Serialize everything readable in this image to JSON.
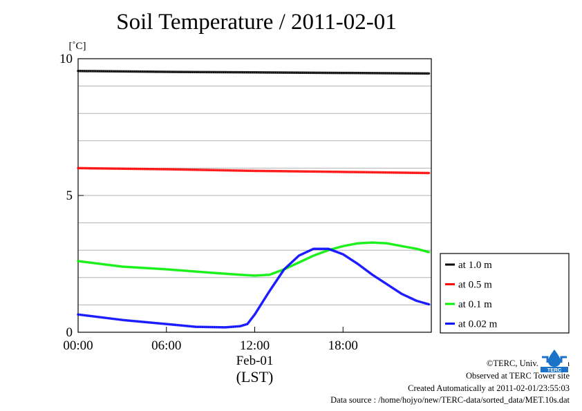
{
  "chart_data": {
    "type": "line",
    "title": "Soil Temperature / 2011-02-01",
    "ylabel": "[˚C]",
    "ylim": [
      0,
      10
    ],
    "yticks": [
      0,
      5,
      10
    ],
    "xlim": [
      "00:00",
      "24:00"
    ],
    "xticks": [
      "00:00",
      "06:00",
      "12:00",
      "18:00"
    ],
    "xdate_label": "Feb-01",
    "xunit_label": "(LST)",
    "grid": true,
    "legend_position": "right",
    "series": [
      {
        "name": "at 1.0 m",
        "color": "#000000",
        "x": [
          "00:00",
          "06:00",
          "12:00",
          "18:00",
          "23:50"
        ],
        "y": [
          9.55,
          9.52,
          9.5,
          9.48,
          9.46
        ]
      },
      {
        "name": "at 0.5 m",
        "color": "#ff0000",
        "x": [
          "00:00",
          "06:00",
          "12:00",
          "18:00",
          "23:50"
        ],
        "y": [
          6.0,
          5.96,
          5.9,
          5.86,
          5.82
        ]
      },
      {
        "name": "at 0.1 m",
        "color": "#00ee00",
        "x": [
          "00:00",
          "03:00",
          "06:00",
          "09:00",
          "11:00",
          "12:00",
          "13:00",
          "14:00",
          "15:00",
          "16:00",
          "17:00",
          "18:00",
          "19:00",
          "20:00",
          "21:00",
          "22:00",
          "23:00",
          "23:50"
        ],
        "y": [
          2.6,
          2.4,
          2.3,
          2.18,
          2.1,
          2.07,
          2.1,
          2.3,
          2.55,
          2.8,
          3.0,
          3.15,
          3.25,
          3.28,
          3.25,
          3.15,
          3.05,
          2.93
        ]
      },
      {
        "name": "at 0.02 m",
        "color": "#0000ff",
        "x": [
          "00:00",
          "03:00",
          "06:00",
          "08:00",
          "10:00",
          "11:00",
          "11:30",
          "12:00",
          "13:00",
          "14:00",
          "15:00",
          "16:00",
          "17:00",
          "18:00",
          "19:00",
          "20:00",
          "21:00",
          "22:00",
          "23:00",
          "23:50"
        ],
        "y": [
          0.65,
          0.45,
          0.3,
          0.2,
          0.18,
          0.22,
          0.3,
          0.65,
          1.5,
          2.3,
          2.8,
          3.05,
          3.05,
          2.85,
          2.5,
          2.1,
          1.75,
          1.4,
          1.15,
          1.02
        ]
      }
    ]
  },
  "footer": {
    "copyright": "©TERC, Univ. Tsukuba",
    "observed": "Observed at TERC Tower site",
    "created": "Created Automatically at 2011-02-01/23:55:03",
    "source": "Data source : /home/hojyo/new/TERC-data/sorted_data/MET.10s.dat"
  },
  "logo": {
    "text": "TERC",
    "color": "#1a73c9",
    "icon": "terc-logo-icon"
  }
}
